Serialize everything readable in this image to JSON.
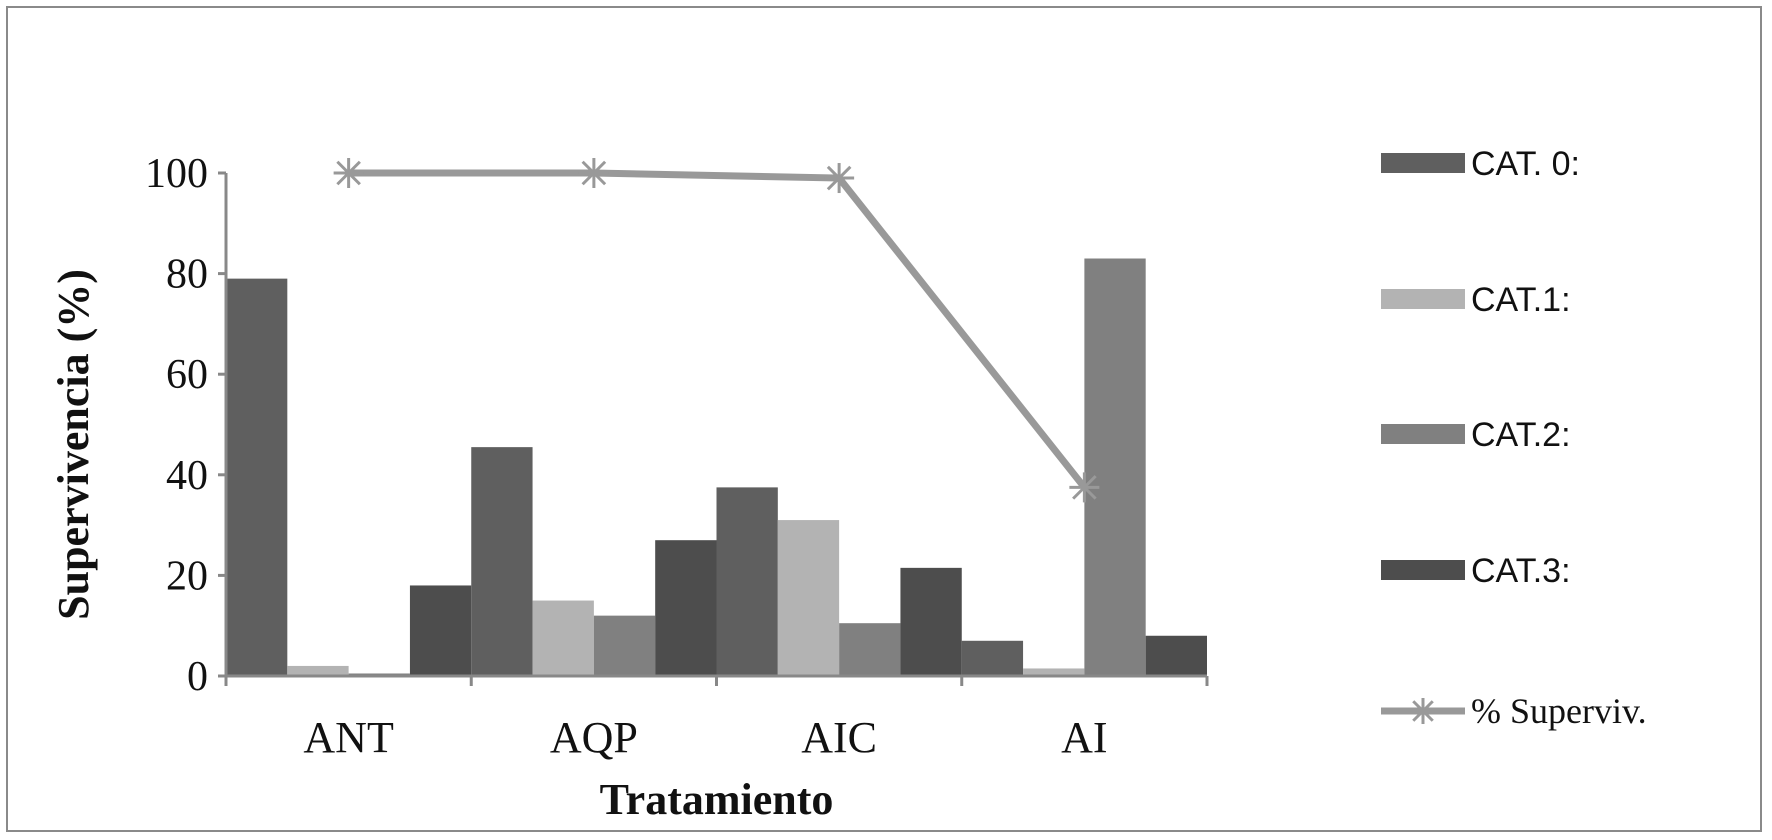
{
  "chart_data": {
    "type": "bar",
    "title": "",
    "xlabel": "Tratamiento",
    "ylabel": "Supervivencia (%)",
    "ylim": [
      0,
      100
    ],
    "yticks": [
      "0",
      "20",
      "40",
      "60",
      "80",
      "100"
    ],
    "categories": [
      "ANT",
      "AQP",
      "AIC",
      "AI"
    ],
    "series": [
      {
        "name": "CAT. 0:",
        "type": "bar",
        "color": "#5f5f5f",
        "values": [
          79,
          45.5,
          37.5,
          7
        ]
      },
      {
        "name": "CAT.1:",
        "type": "bar",
        "color": "#b3b3b3",
        "values": [
          2,
          15,
          31,
          1.5
        ]
      },
      {
        "name": "CAT.2:",
        "type": "bar",
        "color": "#808080",
        "values": [
          0.5,
          12,
          10.5,
          83
        ]
      },
      {
        "name": "CAT.3:",
        "type": "bar",
        "color": "#4d4d4d",
        "values": [
          18,
          27,
          21.5,
          8
        ]
      },
      {
        "name": "% Superviv.",
        "type": "line",
        "color": "#999999",
        "marker": "asterisk",
        "values": [
          100,
          100,
          99,
          37.5
        ]
      }
    ],
    "legend": "right",
    "grid": false
  }
}
